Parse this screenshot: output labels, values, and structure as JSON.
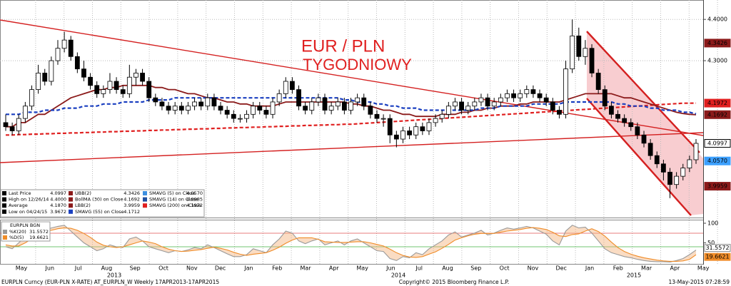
{
  "chart_data": {
    "type": "candlestick",
    "title": "EUR / PLN",
    "subtitle": "TYGODNIOWY",
    "open": [
      4.15,
      4.14,
      4.13,
      4.16,
      4.19,
      4.23,
      4.27,
      4.25,
      4.3,
      4.33,
      4.35,
      4.31,
      4.28,
      4.26,
      4.24,
      4.22,
      4.23,
      4.25,
      4.23,
      4.22,
      4.26,
      4.27,
      4.25,
      4.21,
      4.2,
      4.19,
      4.18,
      4.19,
      4.18,
      4.19,
      4.2,
      4.19,
      4.21,
      4.19,
      4.18,
      4.17,
      4.16,
      4.16,
      4.17,
      4.19,
      4.18,
      4.17,
      4.2,
      4.22,
      4.25,
      4.23,
      4.19,
      4.18,
      4.2,
      4.21,
      4.18,
      4.19,
      4.2,
      4.18,
      4.2,
      4.21,
      4.19,
      4.17,
      4.16,
      4.16,
      4.12,
      4.11,
      4.13,
      4.12,
      4.14,
      4.13,
      4.15,
      4.16,
      4.17,
      4.19,
      4.2,
      4.18,
      4.19,
      4.2,
      4.21,
      4.19,
      4.2,
      4.21,
      4.22,
      4.21,
      4.22,
      4.23,
      4.22,
      4.21,
      4.2,
      4.18,
      4.17,
      4.28,
      4.36,
      4.31,
      4.33,
      4.27,
      4.23,
      4.19,
      4.17,
      4.16,
      4.15,
      4.14,
      4.12,
      4.1,
      4.07,
      4.05,
      4.03,
      4.0,
      4.02,
      4.04,
      4.06
    ],
    "high": [
      4.17,
      4.15,
      4.17,
      4.2,
      4.24,
      4.29,
      4.28,
      4.31,
      4.35,
      4.37,
      4.36,
      4.32,
      4.3,
      4.27,
      4.25,
      4.24,
      4.27,
      4.26,
      4.24,
      4.29,
      4.28,
      4.28,
      4.26,
      4.22,
      4.21,
      4.2,
      4.2,
      4.2,
      4.2,
      4.21,
      4.21,
      4.22,
      4.22,
      4.2,
      4.19,
      4.18,
      4.17,
      4.18,
      4.2,
      4.2,
      4.19,
      4.21,
      4.23,
      4.26,
      4.26,
      4.24,
      4.2,
      4.21,
      4.22,
      4.22,
      4.2,
      4.21,
      4.21,
      4.21,
      4.22,
      4.22,
      4.2,
      4.18,
      4.17,
      4.17,
      4.13,
      4.14,
      4.14,
      4.15,
      4.15,
      4.16,
      4.17,
      4.18,
      4.2,
      4.21,
      4.21,
      4.2,
      4.21,
      4.22,
      4.22,
      4.21,
      4.22,
      4.23,
      4.23,
      4.23,
      4.24,
      4.24,
      4.23,
      4.22,
      4.21,
      4.19,
      4.3,
      4.4,
      4.38,
      4.35,
      4.34,
      4.28,
      4.24,
      4.2,
      4.18,
      4.17,
      4.16,
      4.15,
      4.13,
      4.11,
      4.08,
      4.06,
      4.04,
      4.03,
      4.05,
      4.07,
      4.11
    ],
    "low": [
      4.13,
      4.12,
      4.12,
      4.15,
      4.18,
      4.22,
      4.24,
      4.24,
      4.29,
      4.32,
      4.3,
      4.27,
      4.25,
      4.23,
      4.21,
      4.21,
      4.22,
      4.22,
      4.21,
      4.21,
      4.24,
      4.24,
      4.2,
      4.19,
      4.18,
      4.17,
      4.17,
      4.17,
      4.17,
      4.18,
      4.18,
      4.18,
      4.18,
      4.17,
      4.16,
      4.15,
      4.15,
      4.15,
      4.16,
      4.17,
      4.16,
      4.16,
      4.19,
      4.21,
      4.22,
      4.18,
      4.17,
      4.17,
      4.19,
      4.17,
      4.17,
      4.18,
      4.17,
      4.17,
      4.19,
      4.18,
      4.16,
      4.15,
      4.14,
      4.1,
      4.09,
      4.1,
      4.11,
      4.11,
      4.12,
      4.12,
      4.14,
      4.15,
      4.16,
      4.18,
      4.17,
      4.17,
      4.18,
      4.19,
      4.18,
      4.18,
      4.19,
      4.2,
      4.2,
      4.2,
      4.21,
      4.21,
      4.2,
      4.19,
      4.17,
      4.16,
      4.16,
      4.27,
      4.3,
      4.29,
      4.26,
      4.22,
      4.18,
      4.16,
      4.15,
      4.14,
      4.13,
      4.11,
      4.09,
      4.06,
      4.04,
      4.01,
      3.967,
      3.99,
      4.01,
      4.03,
      4.05
    ],
    "close": [
      4.14,
      4.13,
      4.16,
      4.19,
      4.23,
      4.27,
      4.25,
      4.3,
      4.33,
      4.35,
      4.31,
      4.28,
      4.26,
      4.24,
      4.22,
      4.23,
      4.25,
      4.23,
      4.22,
      4.26,
      4.27,
      4.25,
      4.21,
      4.2,
      4.19,
      4.18,
      4.19,
      4.18,
      4.19,
      4.2,
      4.19,
      4.21,
      4.19,
      4.18,
      4.17,
      4.16,
      4.16,
      4.17,
      4.19,
      4.18,
      4.17,
      4.2,
      4.22,
      4.25,
      4.23,
      4.19,
      4.18,
      4.2,
      4.21,
      4.18,
      4.19,
      4.2,
      4.18,
      4.2,
      4.21,
      4.19,
      4.17,
      4.16,
      4.16,
      4.12,
      4.11,
      4.13,
      4.12,
      4.14,
      4.13,
      4.15,
      4.16,
      4.17,
      4.19,
      4.2,
      4.18,
      4.19,
      4.2,
      4.21,
      4.19,
      4.2,
      4.21,
      4.22,
      4.21,
      4.22,
      4.23,
      4.22,
      4.21,
      4.2,
      4.18,
      4.17,
      4.28,
      4.36,
      4.31,
      4.33,
      4.27,
      4.23,
      4.19,
      4.17,
      4.16,
      4.15,
      4.14,
      4.12,
      4.1,
      4.07,
      4.05,
      4.03,
      4.0,
      4.02,
      4.04,
      4.06,
      4.0997
    ],
    "overlays": [
      {
        "color": "#e02020",
        "dashed": true,
        "values": [
          4.12,
          4.12,
          4.121,
          4.121,
          4.122,
          4.122,
          4.123,
          4.123,
          4.124,
          4.124,
          4.125,
          4.125,
          4.126,
          4.126,
          4.127,
          4.127,
          4.128,
          4.128,
          4.129,
          4.129,
          4.13,
          4.13,
          4.131,
          4.131,
          4.132,
          4.132,
          4.133,
          4.133,
          4.134,
          4.134,
          4.135,
          4.135,
          4.136,
          4.136,
          4.137,
          4.137,
          4.138,
          4.138,
          4.139,
          4.139,
          4.14,
          4.14,
          4.141,
          4.141,
          4.142,
          4.142,
          4.143,
          4.143,
          4.144,
          4.144,
          4.145,
          4.145,
          4.146,
          4.146,
          4.147,
          4.148,
          4.149,
          4.15,
          4.151,
          4.152,
          4.153,
          4.154,
          4.155,
          4.156,
          4.157,
          4.158,
          4.159,
          4.16,
          4.161,
          4.162,
          4.163,
          4.164,
          4.165,
          4.166,
          4.167,
          4.168,
          4.169,
          4.17,
          4.171,
          4.172,
          4.173,
          4.174,
          4.175,
          4.176,
          4.177,
          4.178,
          4.179,
          4.18,
          4.181,
          4.182,
          4.183,
          4.184,
          4.185,
          4.186,
          4.187,
          4.188,
          4.189,
          4.19,
          4.191,
          4.192,
          4.193,
          4.194,
          4.195,
          4.196,
          4.197,
          4.197,
          4.1972
        ]
      },
      {
        "color": "#8b1a1a",
        "dashed": false,
        "values": [
          4.14,
          4.14,
          4.15,
          4.15,
          4.16,
          4.17,
          4.17,
          4.18,
          4.19,
          4.2,
          4.21,
          4.215,
          4.22,
          4.225,
          4.23,
          4.23,
          4.235,
          4.235,
          4.24,
          4.24,
          4.24,
          4.24,
          4.24,
          4.235,
          4.235,
          4.23,
          4.23,
          4.225,
          4.22,
          4.22,
          4.215,
          4.21,
          4.21,
          4.205,
          4.2,
          4.2,
          4.195,
          4.195,
          4.19,
          4.19,
          4.19,
          4.19,
          4.195,
          4.2,
          4.2,
          4.2,
          4.2,
          4.2,
          4.2,
          4.2,
          4.2,
          4.2,
          4.2,
          4.195,
          4.195,
          4.19,
          4.19,
          4.185,
          4.18,
          4.18,
          4.175,
          4.17,
          4.17,
          4.165,
          4.165,
          4.165,
          4.165,
          4.17,
          4.17,
          4.17,
          4.175,
          4.175,
          4.18,
          4.18,
          4.185,
          4.185,
          4.19,
          4.19,
          4.19,
          4.195,
          4.195,
          4.2,
          4.2,
          4.2,
          4.2,
          4.2,
          4.205,
          4.21,
          4.215,
          4.22,
          4.22,
          4.22,
          4.22,
          4.22,
          4.215,
          4.21,
          4.21,
          4.205,
          4.2,
          4.195,
          4.19,
          4.185,
          4.18,
          4.175,
          4.172,
          4.17,
          4.1692
        ]
      },
      {
        "color": "#1a3fc0",
        "dashed": true,
        "values": [
          4.17,
          4.17,
          4.17,
          4.175,
          4.175,
          4.175,
          4.18,
          4.18,
          4.18,
          4.185,
          4.185,
          4.185,
          4.19,
          4.19,
          4.19,
          4.195,
          4.195,
          4.195,
          4.2,
          4.2,
          4.2,
          4.2,
          4.205,
          4.205,
          4.205,
          4.205,
          4.21,
          4.21,
          4.21,
          4.21,
          4.21,
          4.21,
          4.21,
          4.21,
          4.21,
          4.21,
          4.21,
          4.21,
          4.21,
          4.21,
          4.21,
          4.21,
          4.21,
          4.21,
          4.21,
          4.21,
          4.21,
          4.21,
          4.21,
          4.21,
          4.21,
          4.21,
          4.205,
          4.205,
          4.2,
          4.2,
          4.2,
          4.195,
          4.195,
          4.19,
          4.19,
          4.185,
          4.185,
          4.185,
          4.18,
          4.18,
          4.18,
          4.18,
          4.18,
          4.18,
          4.18,
          4.18,
          4.18,
          4.185,
          4.185,
          4.185,
          4.19,
          4.19,
          4.19,
          4.19,
          4.19,
          4.195,
          4.195,
          4.195,
          4.195,
          4.195,
          4.2,
          4.2,
          4.2,
          4.2,
          4.2,
          4.2,
          4.2,
          4.2,
          4.195,
          4.195,
          4.19,
          4.19,
          4.19,
          4.185,
          4.185,
          4.18,
          4.18,
          4.18,
          4.175,
          4.175,
          4.1712
        ]
      }
    ],
    "ylim": [
      3.92,
      4.447
    ],
    "yticks": [
      {
        "value": 4.3,
        "label": "4.3000"
      },
      {
        "value": 4.4,
        "label": "4.4000"
      }
    ],
    "flags": [
      {
        "value": 4.3426,
        "color": "#8b1a1a"
      },
      {
        "value": 4.1972,
        "color": "#e02020"
      },
      {
        "value": 4.1692,
        "color": "#8b1a1a"
      },
      {
        "value": 4.0997,
        "color": "#ffffff"
      },
      {
        "value": 4.057,
        "label": "4.0570",
        "color": "#3da0ff"
      },
      {
        "value": 3.9959,
        "color": "#8b1a1a"
      }
    ],
    "legend": [
      {
        "label": "Last Price",
        "value": "4.0997",
        "color": "#000000"
      },
      {
        "label": "High on 12/26/14",
        "value": "4.4000",
        "color": "#000000"
      },
      {
        "label": "Average",
        "value": "4.1870",
        "color": "#000000"
      },
      {
        "label": "Low on 04/24/15",
        "value": "3.9672",
        "color": "#000000"
      },
      {
        "label": "UBB(2)",
        "value": "4.3426",
        "color": "#8b1a1a"
      },
      {
        "label": "BollMA (30) on Close",
        "value": "4.1692",
        "color": "#8b1a1a"
      },
      {
        "label": "LBB(2)",
        "value": "3.9959",
        "color": "#8b1a1a"
      },
      {
        "label": "SMAVG (55) on Close",
        "value": "4.1712",
        "color": "#1a3fc0"
      },
      {
        "label": "SMAVG (5) on Close",
        "value": "4.0570",
        "color": "#3d8fe0"
      },
      {
        "label": "SMAVG (14) on Close",
        "value": "4.0985",
        "color": "#2050a0"
      },
      {
        "label": "SMAVG (200) on Close",
        "value": "4.1972",
        "color": "#e02020"
      }
    ],
    "months": [
      "May",
      "Jun",
      "Jul",
      "Aug",
      "Sep",
      "Oct",
      "Nov",
      "Dec",
      "Jan",
      "Feb",
      "Mar",
      "Apr",
      "May",
      "Jun",
      "Jul",
      "Aug",
      "Sep",
      "Oct",
      "Nov",
      "Dec",
      "Jan",
      "Feb",
      "Mar",
      "Apr",
      "May"
    ],
    "years": [
      "2013",
      "2014",
      "2015"
    ]
  },
  "oscillator": {
    "type": "line",
    "legend_title": "EURPLN BGN",
    "ylim": [
      0,
      100
    ],
    "yticks": [
      50,
      100
    ],
    "series": [
      {
        "name": "%K(20)",
        "color": "#9a9a9a",
        "values": [
          40,
          35,
          50,
          65,
          80,
          90,
          82,
          88,
          92,
          95,
          80,
          65,
          50,
          40,
          30,
          35,
          45,
          40,
          38,
          60,
          65,
          55,
          40,
          35,
          30,
          25,
          30,
          28,
          32,
          38,
          35,
          45,
          38,
          30,
          22,
          15,
          15,
          20,
          35,
          30,
          25,
          45,
          60,
          80,
          75,
          55,
          48,
          55,
          60,
          45,
          50,
          55,
          45,
          55,
          60,
          50,
          40,
          30,
          28,
          10,
          5,
          15,
          12,
          25,
          20,
          35,
          45,
          55,
          70,
          78,
          65,
          70,
          75,
          82,
          70,
          75,
          82,
          88,
          85,
          88,
          92,
          88,
          80,
          72,
          55,
          45,
          80,
          95,
          88,
          90,
          75,
          55,
          35,
          25,
          20,
          15,
          12,
          8,
          5,
          3,
          2,
          2,
          1,
          5,
          10,
          20,
          31.5572
        ]
      },
      {
        "name": "%D(5)",
        "color": "#f08c28",
        "values": [
          45,
          42,
          42,
          50,
          60,
          70,
          78,
          82,
          86,
          88,
          87,
          82,
          74,
          64,
          52,
          44,
          40,
          38,
          40,
          45,
          50,
          55,
          52,
          48,
          40,
          34,
          30,
          28,
          29,
          31,
          33,
          36,
          39,
          36,
          32,
          26,
          21,
          18,
          21,
          23,
          25,
          31,
          39,
          49,
          57,
          63,
          63,
          63,
          59,
          53,
          52,
          51,
          51,
          52,
          53,
          53,
          50,
          46,
          42,
          34,
          25,
          18,
          14,
          13,
          15,
          21,
          27,
          36,
          46,
          57,
          63,
          68,
          72,
          74,
          74,
          74,
          77,
          80,
          82,
          84,
          87,
          89,
          87,
          84,
          77,
          68,
          66,
          71,
          73,
          80,
          86,
          79,
          67,
          52,
          38,
          28,
          21,
          16,
          12,
          9,
          6,
          4,
          3,
          3,
          4,
          8,
          19.6621
        ]
      }
    ]
  },
  "footer": {
    "left": "EURPLN Curncy (EUR-PLN X-RATE) AT_EURPLN_W  Weekly 17APR2013-17APR2015",
    "center": "Copyright© 2015 Bloomberg Finance L.P.",
    "right": "13-May-2015 07:28:59"
  }
}
